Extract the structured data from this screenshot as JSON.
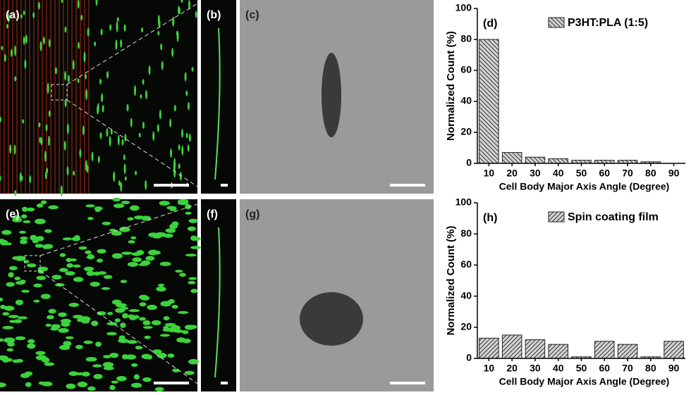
{
  "image_panels": [
    {
      "label": "(a)"
    },
    {
      "label": "(b)"
    },
    {
      "label": "(c)"
    },
    {
      "label": "(e)"
    },
    {
      "label": "(f)"
    },
    {
      "label": "(g)"
    }
  ],
  "chart_data": [
    {
      "type": "bar",
      "panel_label": "(d)",
      "xlabel": "Cell Body Major Axis Angle (Degree)",
      "ylabel": "Normalized Count (%)",
      "categories": [
        "10",
        "20",
        "30",
        "40",
        "50",
        "60",
        "70",
        "80",
        "90"
      ],
      "series": [
        {
          "name": "P3HT:PLA (1:5)",
          "color": "#cfcfcf",
          "hatch": "backslash",
          "values": [
            80,
            7,
            4,
            3,
            2,
            2,
            2,
            1,
            0
          ]
        }
      ],
      "ylim": [
        0,
        100
      ],
      "yticks": [
        0,
        20,
        40,
        60,
        80,
        100
      ]
    },
    {
      "type": "bar",
      "panel_label": "(h)",
      "xlabel": "Cell Body Major Axis Angle (Degree)",
      "ylabel": "Normalized Count (%)",
      "categories": [
        "10",
        "20",
        "30",
        "40",
        "50",
        "60",
        "70",
        "80",
        "90"
      ],
      "series": [
        {
          "name": "Spin coating film",
          "color": "#cfcfcf",
          "hatch": "slash",
          "values": [
            13,
            15,
            12,
            9,
            1,
            11,
            9,
            1,
            11
          ]
        }
      ],
      "ylim": [
        0,
        100
      ],
      "yticks": [
        0,
        20,
        40,
        60,
        80,
        100
      ]
    }
  ]
}
